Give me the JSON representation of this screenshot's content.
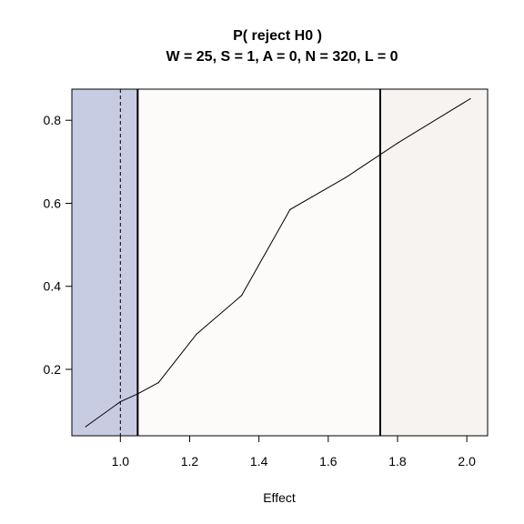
{
  "chart_data": {
    "type": "line",
    "title": "P( reject H0 )",
    "subtitle": "W = 25, S = 1, A = 0, N = 320, L = 0",
    "xlabel": "Effect",
    "ylabel": "",
    "xlim": [
      0.86,
      2.06
    ],
    "ylim": [
      0.04,
      0.875
    ],
    "x_ticks": [
      1.0,
      1.2,
      1.4,
      1.6,
      1.8,
      2.0
    ],
    "x_tick_labels": [
      "1.0",
      "1.2",
      "1.4",
      "1.6",
      "1.8",
      "2.0"
    ],
    "y_ticks": [
      0.2,
      0.4,
      0.6,
      0.8
    ],
    "y_tick_labels": [
      "0.2",
      "0.4",
      "0.6",
      "0.8"
    ],
    "grid": false,
    "legend": "none",
    "regions": [
      {
        "from": 0.86,
        "to": 1.05,
        "color": "#c8cce3"
      },
      {
        "from": 1.05,
        "to": 1.75,
        "color": "#fcfbfa"
      },
      {
        "from": 1.75,
        "to": 2.06,
        "color": "#f7f3f1"
      }
    ],
    "vlines": [
      {
        "x": 1.0,
        "style": "dashed"
      },
      {
        "x": 1.05,
        "style": "solid"
      },
      {
        "x": 1.75,
        "style": "solid"
      }
    ],
    "series": [
      {
        "x": [
          0.9,
          1.0,
          1.05,
          1.11,
          1.22,
          1.35,
          1.49,
          1.65,
          1.8,
          2.01
        ],
        "y": [
          0.062,
          0.122,
          0.141,
          0.168,
          0.285,
          0.378,
          0.585,
          0.662,
          0.745,
          0.852
        ],
        "color": "#000000"
      }
    ]
  }
}
